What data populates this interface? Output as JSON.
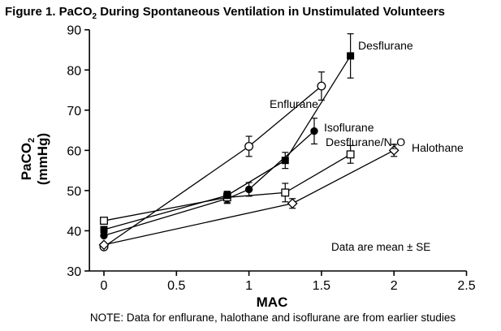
{
  "chart_data": {
    "type": "line",
    "title_prefix": "Figure 1. PaCO",
    "title_sub": "2",
    "title_suffix": " During Spontaneous Ventilation in Unstimulated Volunteers",
    "xlabel": "MAC",
    "ylabel_main": "PaCO",
    "ylabel_sub": "2",
    "ylabel_units": "(mmHg)",
    "xlim": [
      -0.1,
      2.5
    ],
    "ylim": [
      30,
      90
    ],
    "xticks": [
      "0",
      "0.5",
      "1",
      "1.5",
      "2",
      "2.5"
    ],
    "yticks": [
      "30",
      "40",
      "50",
      "60",
      "70",
      "80",
      "90"
    ],
    "grid": false,
    "annotation": "Data are mean ± SE",
    "note": "NOTE: Data for enflurane, halothane and isoflurane are from earlier studies",
    "series": [
      {
        "name": "Enflurane",
        "marker": "circle-open",
        "x": [
          0,
          1.0,
          1.5
        ],
        "y": [
          36.0,
          61.0,
          76.0
        ],
        "err": [
          0,
          2.5,
          3.5
        ]
      },
      {
        "name": "Desflurane",
        "marker": "square-filled",
        "x": [
          0,
          0.85,
          1.25,
          1.7
        ],
        "y": [
          40.3,
          48.8,
          57.5,
          83.5
        ],
        "err": [
          0,
          1.0,
          2.0,
          5.5
        ]
      },
      {
        "name": "Isoflurane",
        "marker": "circle-filled",
        "x": [
          0,
          0.85,
          1.0,
          1.45
        ],
        "y": [
          38.8,
          48.0,
          50.3,
          64.8
        ],
        "err": [
          0,
          1.0,
          1.7,
          3.2
        ]
      },
      {
        "name": "Desflurane/N",
        "name_sub": "2",
        "name_suffix": "O",
        "marker": "square-open",
        "x": [
          0,
          0.85,
          1.25,
          1.7
        ],
        "y": [
          42.5,
          48.3,
          49.5,
          59.0
        ],
        "err": [
          0,
          1.5,
          2.3,
          2.2
        ]
      },
      {
        "name": "Halothane",
        "marker": "diamond-open",
        "x": [
          0,
          1.3,
          2.0
        ],
        "y": [
          36.5,
          46.8,
          60.0
        ],
        "err": [
          0,
          1.2,
          1.5
        ]
      }
    ]
  }
}
